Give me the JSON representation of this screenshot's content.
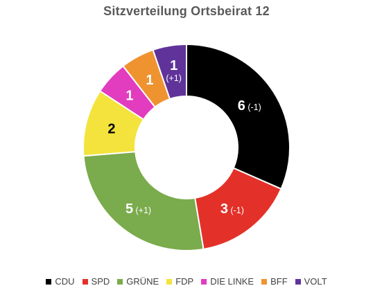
{
  "chart_data": {
    "type": "pie",
    "title": "Sitzverteilung Ortsbeirat 12",
    "variant": "donut",
    "slices": [
      {
        "name": "CDU",
        "value": 6,
        "change": "(-1)",
        "color": "#000000",
        "label_color": "#ffffff"
      },
      {
        "name": "SPD",
        "value": 3,
        "change": "(-1)",
        "color": "#e3312a",
        "label_color": "#ffffff"
      },
      {
        "name": "GRÜNE",
        "value": 5,
        "change": "(+1)",
        "color": "#7aab4c",
        "label_color": "#ffffff"
      },
      {
        "name": "FDP",
        "value": 2,
        "change": "",
        "color": "#f3e33c",
        "label_color": "#000000"
      },
      {
        "name": "DIE LINKE",
        "value": 1,
        "change": "",
        "color": "#e23cbf",
        "label_color": "#ffffff"
      },
      {
        "name": "BFF",
        "value": 1,
        "change": "",
        "color": "#ef9331",
        "label_color": "#ffffff"
      },
      {
        "name": "VOLT",
        "value": 1,
        "change": "(+1)",
        "color": "#60339a",
        "label_color": "#ffffff"
      }
    ],
    "legend_position": "bottom",
    "slice_border_color": "#ffffff"
  }
}
